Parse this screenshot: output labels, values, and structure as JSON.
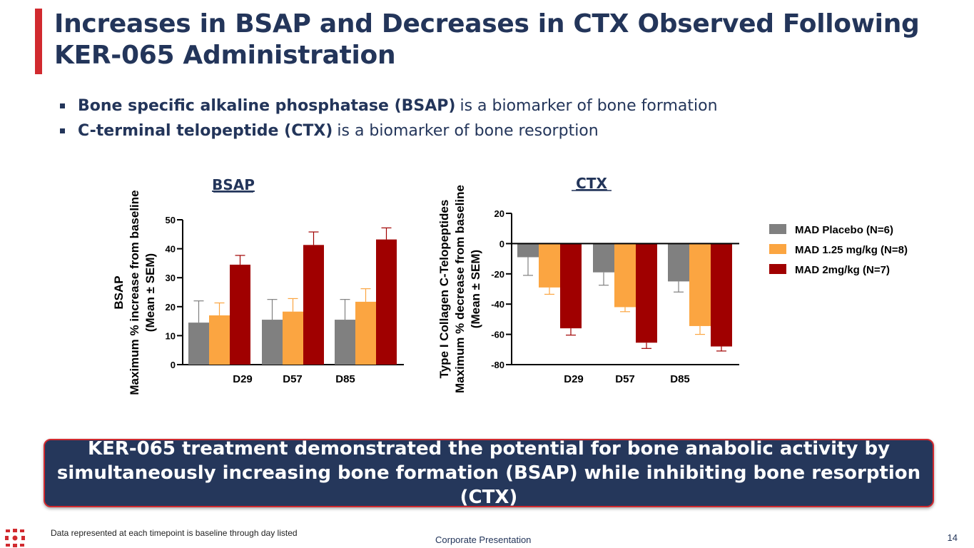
{
  "slide": {
    "title_line1": "Increases in BSAP and Decreases in CTX Observed Following",
    "title_line2": "KER-065 Administration",
    "bullets": [
      {
        "bold": "Bone specific alkaline phosphatase (BSAP)",
        "rest": "is a biomarker of bone formation"
      },
      {
        "bold": "C-terminal telopeptide (CTX)",
        "rest": "is a biomarker of bone resorption"
      }
    ],
    "callout_line1": "KER-065 treatment demonstrated the potential for bone anabolic activity by",
    "callout_line2": "simultaneously increasing bone formation (BSAP) while inhibiting bone resorption (CTX)",
    "footnote": "Data represented at each timepoint is baseline through day listed",
    "footer_center": "Corporate Presentation",
    "page_number": "14"
  },
  "colors": {
    "placebo": "#808080",
    "low": "#fba541",
    "high": "#a00000",
    "accent": "#d12a2f",
    "navy": "#25375b"
  },
  "chart_data": [
    {
      "type": "bar",
      "title": "BSAP",
      "ylabel_lines": [
        "BSAP",
        "Maximum % increase from baseline",
        "(Mean ± SEM)"
      ],
      "xlabel": "",
      "categories": [
        "D29",
        "D57",
        "D85"
      ],
      "ylim": [
        0,
        50
      ],
      "yticks": [
        0,
        10,
        20,
        30,
        40,
        50
      ],
      "series": [
        {
          "name": "MAD Placebo (N=6)",
          "values": [
            14.5,
            15.5,
            15.5
          ],
          "err": [
            7.5,
            7,
            7
          ]
        },
        {
          "name": "MAD 1.25 mg/kg (N=8)",
          "values": [
            17,
            18.3,
            21.7
          ],
          "err": [
            4.3,
            4.5,
            4.5
          ]
        },
        {
          "name": "MAD 2mg/kg (N=7)",
          "values": [
            34.5,
            41.3,
            43.2
          ],
          "err": [
            3.2,
            4.5,
            4
          ]
        }
      ]
    },
    {
      "type": "bar",
      "title": "CTX",
      "ylabel_lines": [
        "Type I Collagen C-Telopeptides",
        "Maximum % decrease from baseline",
        "(Mean ± SEM)"
      ],
      "xlabel": "",
      "categories": [
        "D29",
        "D57",
        "D85"
      ],
      "ylim": [
        -80,
        20
      ],
      "yticks": [
        -80,
        -60,
        -40,
        -20,
        0,
        20
      ],
      "series": [
        {
          "name": "MAD Placebo (N=6)",
          "values": [
            -9,
            -19,
            -25
          ],
          "err": [
            12,
            8.5,
            7
          ]
        },
        {
          "name": "MAD 1.25 mg/kg (N=8)",
          "values": [
            -29,
            -42,
            -54.5
          ],
          "err": [
            4.5,
            3,
            5.5
          ]
        },
        {
          "name": "MAD 2mg/kg (N=7)",
          "values": [
            -56,
            -65.5,
            -68
          ],
          "err": [
            4.5,
            3.8,
            3
          ]
        }
      ],
      "legend": "right"
    }
  ]
}
